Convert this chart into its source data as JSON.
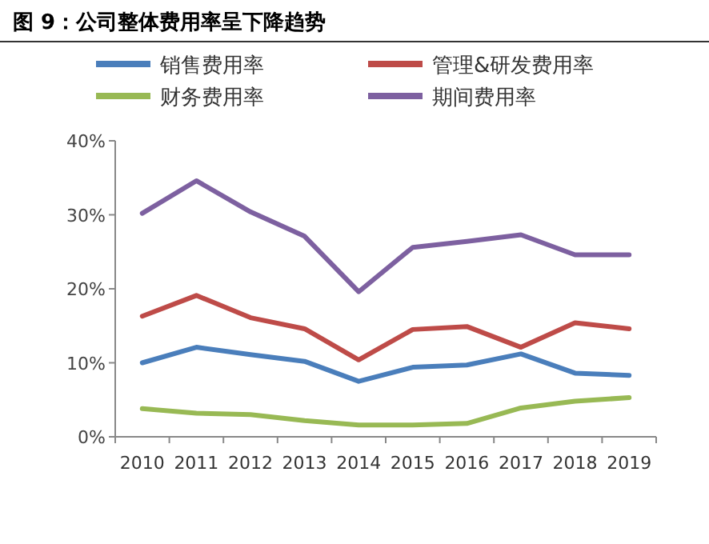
{
  "chart_data": {
    "type": "line",
    "title": "图 9：公司整体费用率呈下降趋势",
    "categories": [
      "2010",
      "2011",
      "2012",
      "2013",
      "2014",
      "2015",
      "2016",
      "2017",
      "2018",
      "2019"
    ],
    "series": [
      {
        "name": "销售费用率",
        "color": "#4a7ebb",
        "values": [
          10.0,
          12.1,
          11.1,
          10.2,
          7.5,
          9.4,
          9.7,
          11.2,
          8.6,
          8.3
        ]
      },
      {
        "name": "管理&研发费用率",
        "color": "#be4b48",
        "values": [
          16.3,
          19.1,
          16.1,
          14.6,
          10.4,
          14.5,
          14.9,
          12.1,
          15.4,
          14.6
        ]
      },
      {
        "name": "财务费用率",
        "color": "#98b954",
        "values": [
          3.8,
          3.2,
          3.0,
          2.2,
          1.6,
          1.6,
          1.8,
          3.9,
          4.8,
          5.3
        ]
      },
      {
        "name": "期间费用率",
        "color": "#7d60a0",
        "values": [
          30.2,
          34.6,
          30.4,
          27.1,
          19.6,
          25.6,
          26.4,
          27.3,
          24.6,
          24.6
        ]
      }
    ],
    "ylim": [
      0,
      40
    ],
    "yticks": [
      {
        "value": 0,
        "label": "0%"
      },
      {
        "value": 10,
        "label": "10%"
      },
      {
        "value": 20,
        "label": "20%"
      },
      {
        "value": 30,
        "label": "30%"
      },
      {
        "value": 40,
        "label": "40%"
      }
    ],
    "legend": "top",
    "grid": false,
    "marker": "none",
    "line_style": "solid"
  }
}
